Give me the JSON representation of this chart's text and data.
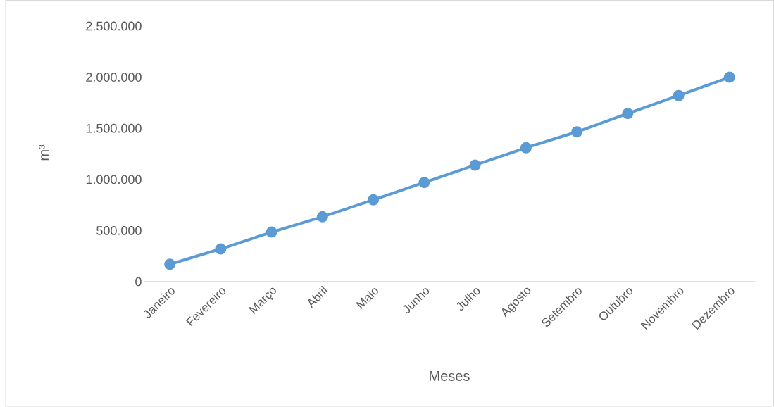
{
  "chart_data": {
    "type": "line",
    "xlabel": "Meses",
    "ylabel": "m³",
    "categories": [
      "Janeiro",
      "Fevereiro",
      "Março",
      "Abril",
      "Maio",
      "Junho",
      "Julho",
      "Agosto",
      "Setembro",
      "Outubro",
      "Novembro",
      "Dezembro"
    ],
    "series": [
      {
        "color": "#5b9bd5",
        "values": [
          170000,
          320000,
          485000,
          635000,
          800000,
          970000,
          1140000,
          1310000,
          1465000,
          1645000,
          1820000,
          2000000
        ]
      }
    ],
    "ylim": [
      0,
      2500000
    ],
    "yticks": [
      {
        "value": 0,
        "label": "0"
      },
      {
        "value": 500000,
        "label": "500.000"
      },
      {
        "value": 1000000,
        "label": "1.000.000"
      },
      {
        "value": 1500000,
        "label": "1.500.000"
      },
      {
        "value": 2000000,
        "label": "2.000.000"
      },
      {
        "value": 2500000,
        "label": "2.500.000"
      }
    ],
    "grid": false,
    "marker": "circle",
    "line_style": "solid"
  }
}
